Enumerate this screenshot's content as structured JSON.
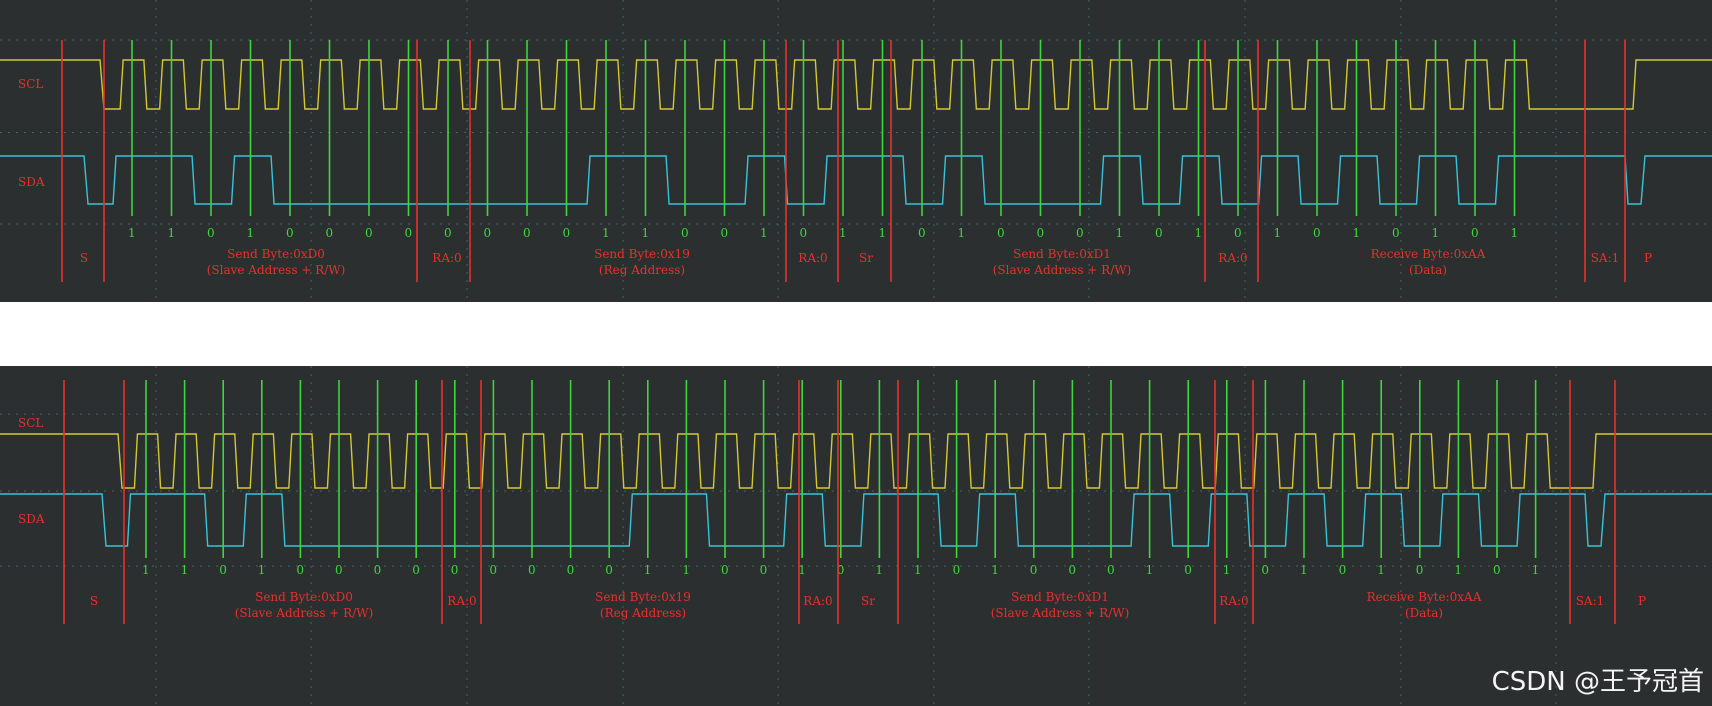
{
  "chart_data": [
    {
      "type": "line",
      "signals": [
        "SCL",
        "SDA"
      ],
      "bits": [
        "1",
        "1",
        "0",
        "1",
        "0",
        "0",
        "0",
        "0",
        "0",
        "0",
        "0",
        "0",
        "1",
        "1",
        "0",
        "0",
        "1",
        "0",
        "1",
        "1",
        "0",
        "1",
        "0",
        "0",
        "0",
        "1",
        "0",
        "1",
        "0",
        "1",
        "0",
        "1",
        "0",
        "1",
        "0",
        "1"
      ],
      "annotations": [
        {
          "text": "S"
        },
        {
          "text": "Send Byte:0xD0",
          "sub": "(Slave Address + R/W)"
        },
        {
          "text": "RA:0"
        },
        {
          "text": "Send Byte:0x19",
          "sub": "(Reg Address)"
        },
        {
          "text": "RA:0"
        },
        {
          "text": "Sr"
        },
        {
          "text": "Send Byte:0xD1",
          "sub": "(Slave Address + R/W)"
        },
        {
          "text": "RA:0"
        },
        {
          "text": "Receive Byte:0xAA",
          "sub": "(Data)"
        },
        {
          "text": "SA:1"
        },
        {
          "text": "P"
        }
      ],
      "colors": {
        "scl": "#d4c832",
        "sda": "#38c4d8",
        "marker": "#e8312a",
        "sample": "#3dd63d",
        "background": "#2b2f30"
      }
    },
    {
      "type": "line",
      "signals": [
        "SCL",
        "SDA"
      ],
      "bits": [
        "1",
        "1",
        "0",
        "1",
        "0",
        "0",
        "0",
        "0",
        "0",
        "0",
        "0",
        "0",
        "0",
        "1",
        "1",
        "0",
        "0",
        "1",
        "0",
        "1",
        "1",
        "0",
        "1",
        "0",
        "0",
        "0",
        "1",
        "0",
        "1",
        "0",
        "1",
        "0",
        "1",
        "0",
        "1",
        "0",
        "1"
      ],
      "annotations": [
        {
          "text": "S"
        },
        {
          "text": "Send Byte:0xD0",
          "sub": "(Slave Address + R/W)"
        },
        {
          "text": "RA:0"
        },
        {
          "text": "Send Byte:0x19",
          "sub": "(Reg Address)"
        },
        {
          "text": "RA:0"
        },
        {
          "text": "Sr"
        },
        {
          "text": "Send Byte:0xD1",
          "sub": "(Slave Address + R/W)"
        },
        {
          "text": "RA:0"
        },
        {
          "text": "Receive Byte:0xAA",
          "sub": "(Data)"
        },
        {
          "text": "SA:1"
        },
        {
          "text": "P"
        }
      ],
      "colors": {
        "scl": "#d4c832",
        "sda": "#38c4d8",
        "marker": "#e8312a",
        "sample": "#3dd63d",
        "background": "#2b2f30"
      }
    }
  ],
  "watermark": "CSDN @王予冠首"
}
